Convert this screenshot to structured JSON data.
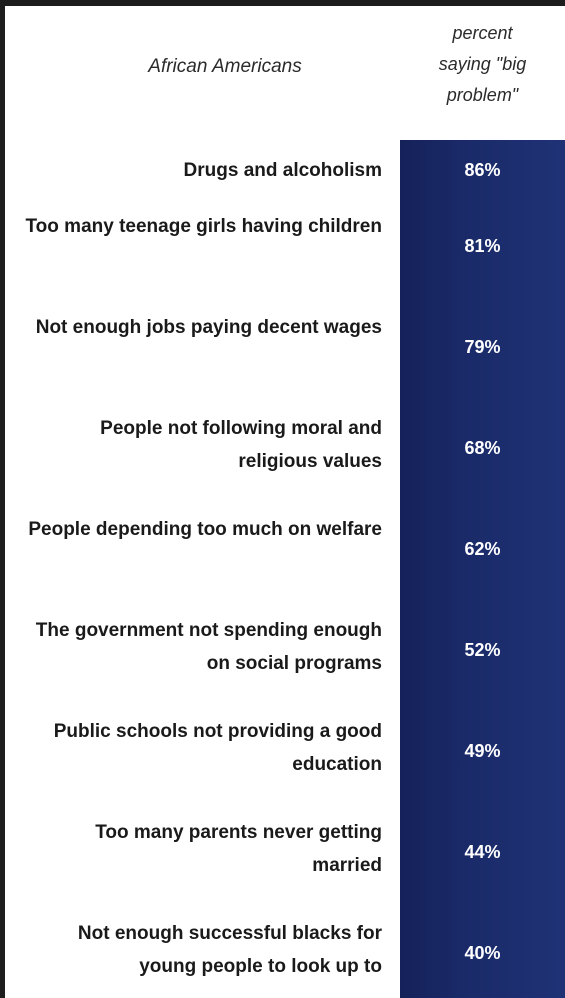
{
  "chart_data": {
    "type": "table",
    "group_label": "African Americans",
    "value_header": "percent\nsaying \"big\nproblem\"",
    "rows": [
      {
        "label": "Drugs and alcoholism",
        "value": 86,
        "display": "86%"
      },
      {
        "label": "Too many teenage girls having children",
        "value": 81,
        "display": "81%"
      },
      {
        "label": "Not enough jobs paying decent wages",
        "value": 79,
        "display": "79%"
      },
      {
        "label": "People not following moral and religious values",
        "value": 68,
        "display": "68%"
      },
      {
        "label": "People depending too much on welfare",
        "value": 62,
        "display": "62%"
      },
      {
        "label": "The government not spending enough on social programs",
        "value": 52,
        "display": "52%"
      },
      {
        "label": "Public schools not providing a good education",
        "value": 49,
        "display": "49%"
      },
      {
        "label": "Too many parents never getting married",
        "value": 44,
        "display": "44%"
      },
      {
        "label": "Not enough successful blacks for young people to look up to",
        "value": 40,
        "display": "40%"
      }
    ],
    "colors": {
      "value_column": "#1a2a69",
      "value_text": "#ffffff",
      "label_text": "#1a1a1a"
    }
  }
}
